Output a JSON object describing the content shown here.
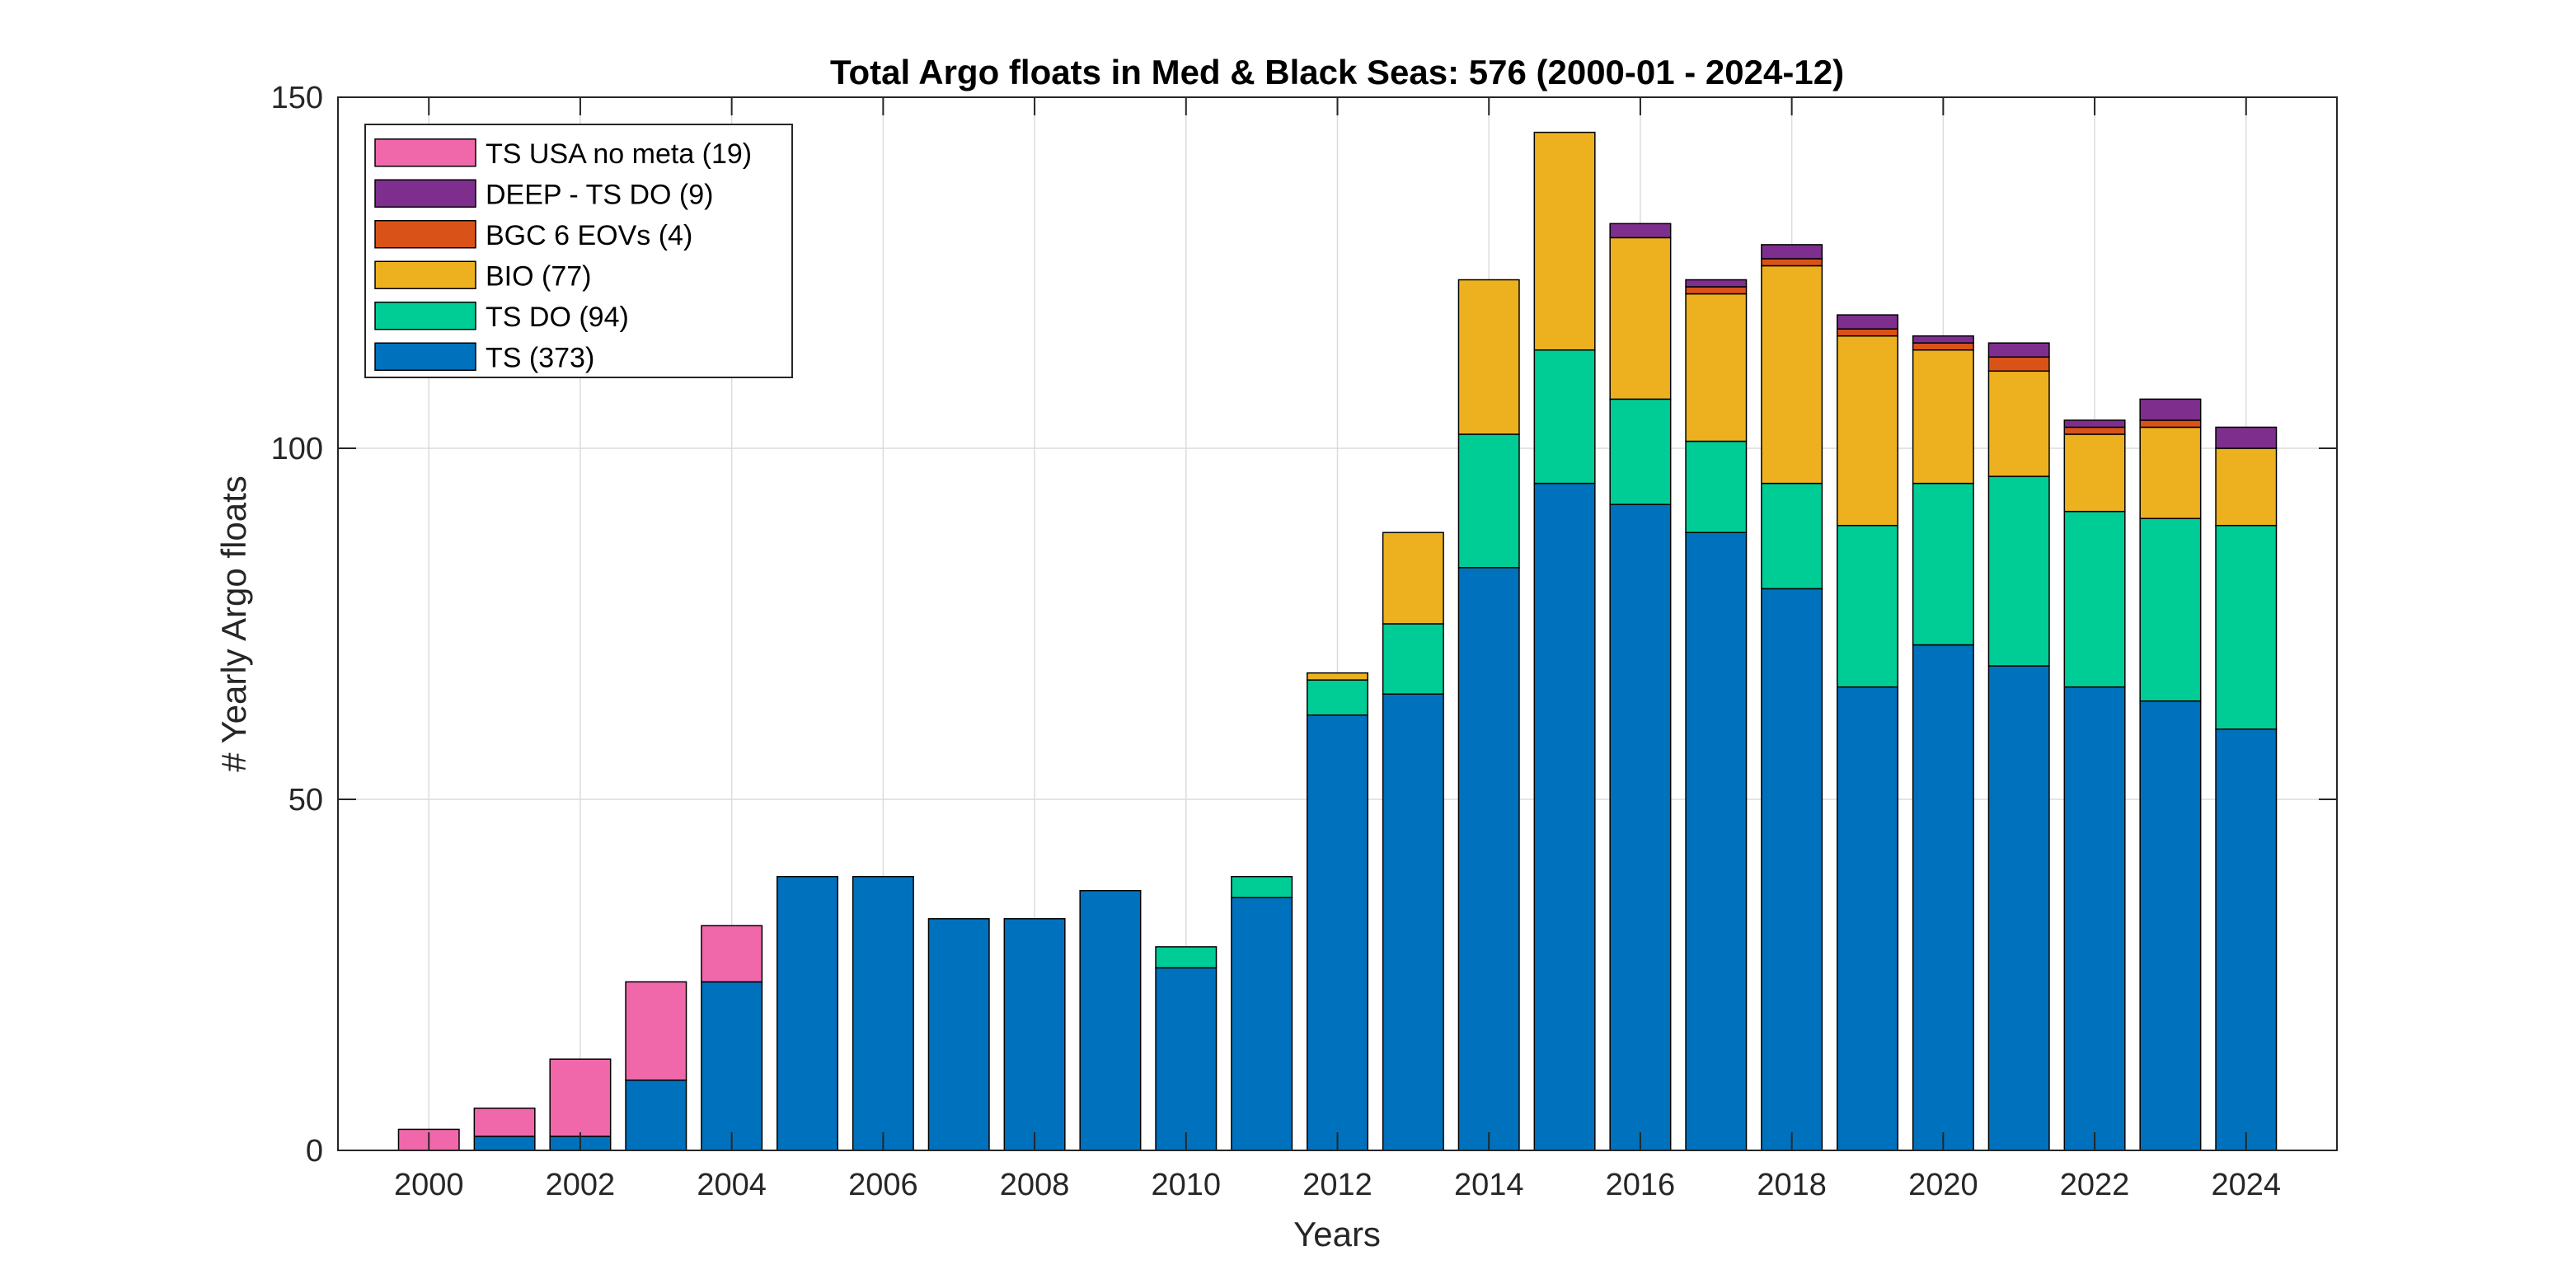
{
  "chart_data": {
    "type": "bar",
    "stacked": true,
    "title": "Total Argo floats in Med & Black Seas: 576 (2000-01 - 2024-12)",
    "xlabel": "Years",
    "ylabel": "# Yearly Argo floats",
    "ylim": [
      0,
      150
    ],
    "yticks": [
      0,
      50,
      100,
      150
    ],
    "xlim": [
      1998.8,
      2025.2
    ],
    "xticks": [
      2000,
      2002,
      2004,
      2006,
      2008,
      2010,
      2012,
      2014,
      2016,
      2018,
      2020,
      2022,
      2024
    ],
    "grid": true,
    "legend_position": "top-left",
    "categories": [
      2000,
      2001,
      2002,
      2003,
      2004,
      2005,
      2006,
      2007,
      2008,
      2009,
      2010,
      2011,
      2012,
      2013,
      2014,
      2015,
      2016,
      2017,
      2018,
      2019,
      2020,
      2021,
      2022,
      2023,
      2024
    ],
    "series": [
      {
        "name": "TS (373)",
        "color": "#0072BD",
        "values": [
          0,
          2,
          2,
          10,
          24,
          39,
          39,
          33,
          33,
          37,
          26,
          36,
          62,
          65,
          83,
          95,
          92,
          88,
          80,
          66,
          72,
          69,
          66,
          64,
          60
        ]
      },
      {
        "name": "TS DO (94)",
        "color": "#00CC96",
        "values": [
          0,
          0,
          0,
          0,
          0,
          0,
          0,
          0,
          0,
          0,
          3,
          3,
          5,
          10,
          19,
          19,
          15,
          13,
          15,
          23,
          23,
          27,
          25,
          26,
          29
        ]
      },
      {
        "name": "BIO (77)",
        "color": "#EDB120",
        "values": [
          0,
          0,
          0,
          0,
          0,
          0,
          0,
          0,
          0,
          0,
          0,
          0,
          1,
          13,
          22,
          31,
          23,
          21,
          31,
          27,
          19,
          15,
          11,
          13,
          11
        ]
      },
      {
        "name": "BGC 6 EOVs (4)",
        "color": "#D95319",
        "values": [
          0,
          0,
          0,
          0,
          0,
          0,
          0,
          0,
          0,
          0,
          0,
          0,
          0,
          0,
          0,
          0,
          0,
          1,
          1,
          1,
          1,
          2,
          1,
          1,
          0
        ]
      },
      {
        "name": "DEEP - TS DO (9)",
        "color": "#7E2F8E",
        "values": [
          0,
          0,
          0,
          0,
          0,
          0,
          0,
          0,
          0,
          0,
          0,
          0,
          0,
          0,
          0,
          0,
          2,
          1,
          2,
          2,
          1,
          2,
          1,
          3,
          3
        ]
      },
      {
        "name": "TS USA no meta (19)",
        "color": "#F068AA",
        "values": [
          3,
          4,
          11,
          14,
          8,
          0,
          0,
          0,
          0,
          0,
          0,
          0,
          0,
          0,
          0,
          0,
          0,
          0,
          0,
          0,
          0,
          0,
          0,
          0,
          0
        ]
      }
    ],
    "legend_order": [
      "TS USA no meta (19)",
      "DEEP - TS DO (9)",
      "BGC 6 EOVs (4)",
      "BIO (77)",
      "TS DO (94)",
      "TS (373)"
    ]
  }
}
